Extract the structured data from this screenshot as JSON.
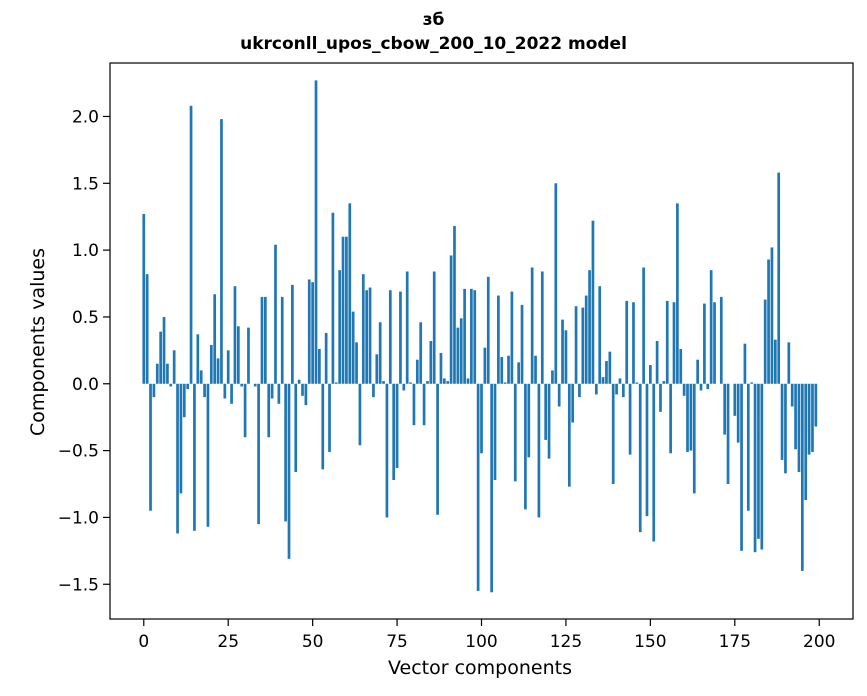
{
  "chart_data": {
    "type": "bar",
    "title": "зб",
    "subtitle": "ukrconll_upos_cbow_200_10_2022 model",
    "xlabel": "Vector components",
    "ylabel": "Components values",
    "xlim": [
      -10,
      210
    ],
    "ylim": [
      -1.76,
      2.4
    ],
    "xticks": [
      0,
      25,
      50,
      75,
      100,
      125,
      150,
      175,
      200
    ],
    "yticks": [
      -1.5,
      -1.0,
      -0.5,
      0.0,
      0.5,
      1.0,
      1.5,
      2.0
    ],
    "ytick_labels": [
      "−1.5",
      "−1.0",
      "−0.5",
      "0.0",
      "0.5",
      "1.0",
      "1.5",
      "2.0"
    ],
    "grid": false,
    "bar_color": "#1f77b4",
    "values": [
      1.27,
      0.82,
      -0.95,
      -0.1,
      0.15,
      0.39,
      0.5,
      0.15,
      -0.02,
      0.25,
      -1.12,
      -0.82,
      -0.25,
      -0.04,
      2.08,
      -1.1,
      0.37,
      0.1,
      -0.1,
      -1.07,
      0.29,
      0.67,
      0.19,
      1.98,
      -0.11,
      0.25,
      -0.15,
      0.73,
      0.43,
      -0.02,
      -0.4,
      0.42,
      0.0,
      -0.02,
      -1.05,
      0.65,
      0.65,
      -0.4,
      -0.11,
      1.04,
      -0.15,
      0.65,
      -1.03,
      -1.31,
      0.74,
      -0.66,
      0.03,
      -0.09,
      -0.16,
      0.78,
      0.76,
      2.27,
      0.26,
      -0.64,
      0.38,
      -0.51,
      1.28,
      0.01,
      0.85,
      1.1,
      1.1,
      1.35,
      0.54,
      0.31,
      -0.46,
      0.82,
      0.7,
      0.72,
      -0.1,
      0.22,
      0.46,
      0.02,
      -1.0,
      0.7,
      -0.72,
      -0.63,
      0.69,
      -0.05,
      0.84,
      0.01,
      -0.31,
      0.18,
      0.46,
      -0.31,
      0.02,
      0.32,
      0.84,
      -0.98,
      0.23,
      0.04,
      0.02,
      0.96,
      1.18,
      0.42,
      0.49,
      0.71,
      0.04,
      0.71,
      0.7,
      -1.55,
      -0.52,
      0.27,
      0.8,
      -1.56,
      -0.72,
      0.66,
      0.2,
      0.01,
      0.21,
      0.69,
      -0.73,
      0.16,
      0.59,
      -0.94,
      -0.55,
      0.87,
      0.21,
      -1.0,
      0.84,
      -0.42,
      -0.56,
      0.1,
      1.5,
      -0.17,
      0.48,
      0.4,
      -0.77,
      -0.29,
      0.58,
      -0.1,
      0.57,
      0.66,
      0.85,
      1.22,
      -0.08,
      0.73,
      0.05,
      0.17,
      0.24,
      -0.75,
      -0.08,
      0.04,
      -0.1,
      0.62,
      -0.53,
      0.61,
      0.01,
      -1.11,
      0.87,
      -0.99,
      0.14,
      -1.18,
      0.32,
      -0.21,
      0.02,
      0.62,
      -0.52,
      0.61,
      1.35,
      0.26,
      -0.09,
      -0.51,
      -0.5,
      -0.82,
      0.18,
      -0.05,
      0.6,
      -0.04,
      0.85,
      0.61,
      0.0,
      0.65,
      -0.38,
      -0.75,
      0.0,
      -0.24,
      -0.44,
      -1.25,
      0.3,
      -0.95,
      0.01,
      -1.26,
      -1.16,
      -1.24,
      0.63,
      0.93,
      1.02,
      0.33,
      1.58,
      -0.57,
      -0.67,
      0.31,
      -0.17,
      -0.49,
      -0.66,
      -1.4,
      -0.87,
      -0.53,
      -0.51,
      -0.32
    ]
  }
}
